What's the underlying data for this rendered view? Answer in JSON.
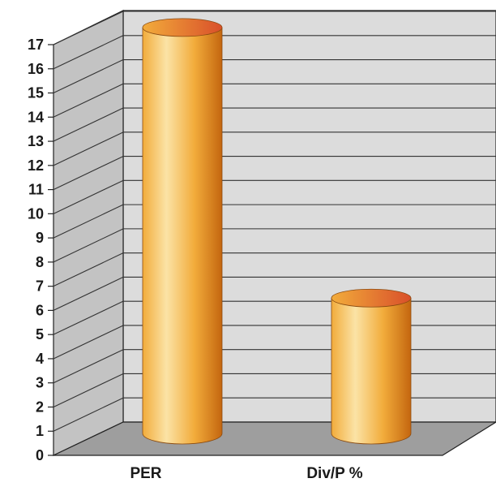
{
  "chart_data": {
    "type": "bar",
    "style": "3d-cylinder",
    "categories": [
      "PER",
      "Div/P %"
    ],
    "values": [
      16.6,
      5.4
    ],
    "ylim": [
      0,
      17
    ],
    "yticks": [
      0,
      1,
      2,
      3,
      4,
      5,
      6,
      7,
      8,
      9,
      10,
      11,
      12,
      13,
      14,
      15,
      16,
      17
    ],
    "grid": true,
    "legend": "none",
    "colors": {
      "bar_light": "#fbe3a6",
      "bar_mid": "#f2ac3b",
      "bar_dark": "#c4660f",
      "bar_top": "#d9502a",
      "back_wall": "#dcdcdc",
      "side_wall": "#c3c3c3",
      "floor": "#9e9e9e",
      "grid": "#333333"
    }
  }
}
